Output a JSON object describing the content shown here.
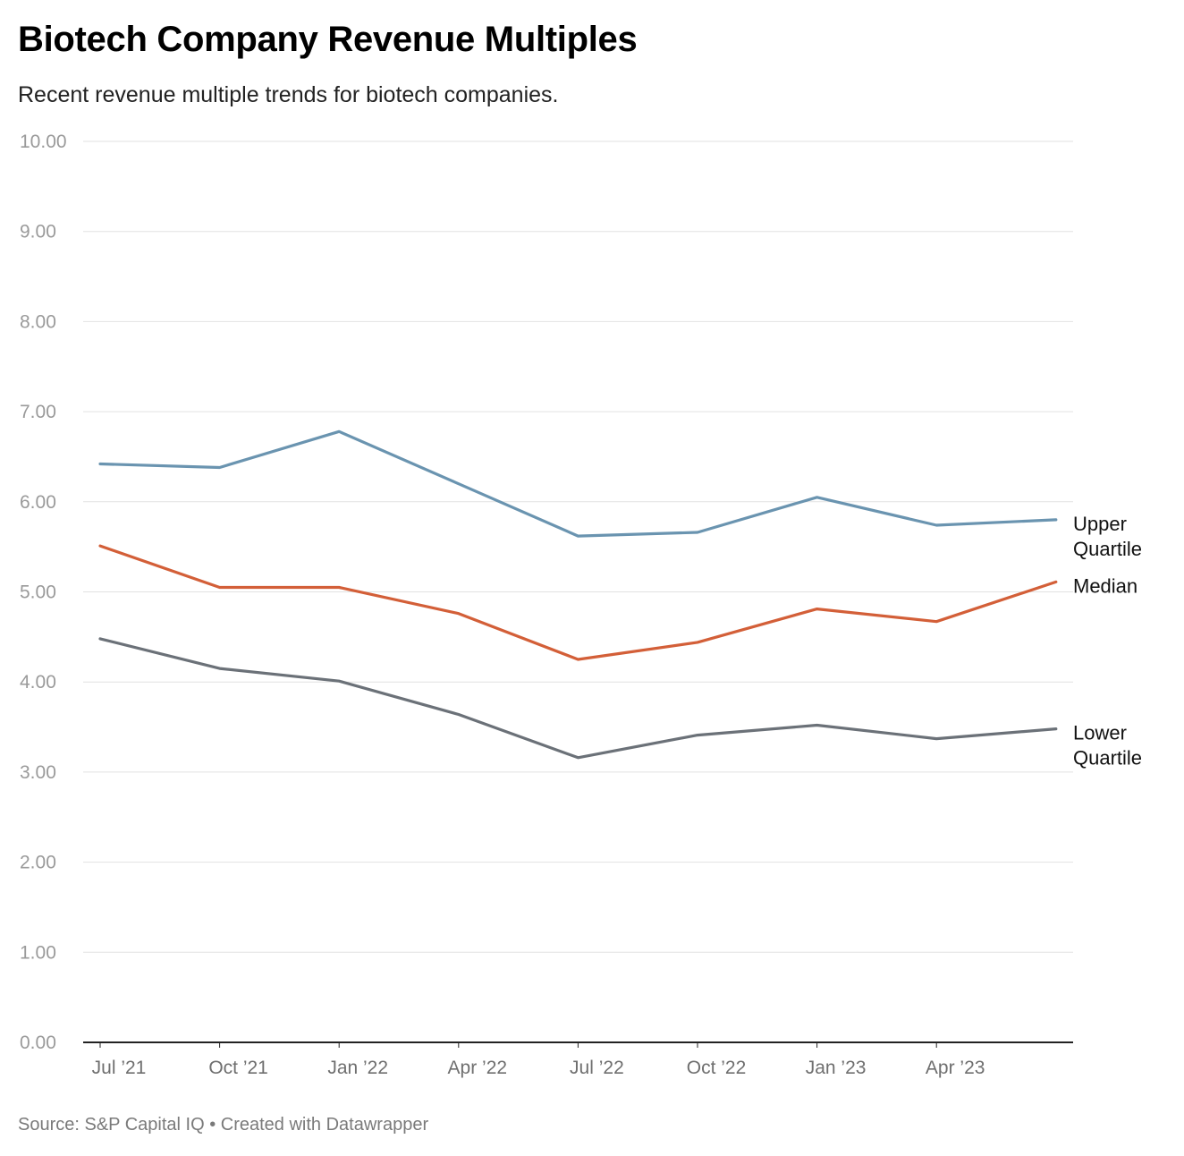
{
  "header": {
    "title": "Biotech Company Revenue Multiples",
    "subtitle": "Recent revenue multiple trends for biotech companies."
  },
  "footer": {
    "source": "Source: S&P Capital IQ",
    "separator": "•",
    "credit": "Created with Datawrapper"
  },
  "chart_data": {
    "type": "line",
    "title": "Biotech Company Revenue Multiples",
    "subtitle": "Recent revenue multiple trends for biotech companies.",
    "xlabel": "",
    "ylabel": "",
    "x": [
      "2021-07",
      "2021-10",
      "2022-01",
      "2022-04",
      "2022-07",
      "2022-10",
      "2023-01",
      "2023-04",
      "2023-07"
    ],
    "x_ticks": [
      "Jul ’21",
      "Oct ’21",
      "Jan ’22",
      "Apr ’22",
      "Jul ’22",
      "Oct ’22",
      "Jan ’23",
      "Apr ’23"
    ],
    "ylim": [
      0,
      10
    ],
    "y_ticks": [
      "0.00",
      "1.00",
      "2.00",
      "3.00",
      "4.00",
      "5.00",
      "6.00",
      "7.00",
      "8.00",
      "9.00",
      "10.00"
    ],
    "grid": true,
    "legend": "direct labels at right end of lines",
    "series": [
      {
        "name": "Upper Quartile",
        "label_lines": [
          "Upper",
          "Quartile"
        ],
        "color": "#6a94b0",
        "values": [
          6.42,
          6.38,
          6.78,
          6.2,
          5.62,
          5.66,
          6.05,
          5.74,
          5.8
        ]
      },
      {
        "name": "Median",
        "label_lines": [
          "Median"
        ],
        "color": "#d35f38",
        "values": [
          5.51,
          5.05,
          5.05,
          4.76,
          4.25,
          4.44,
          4.81,
          4.67,
          5.11
        ]
      },
      {
        "name": "Lower Quartile",
        "label_lines": [
          "Lower",
          "Quartile"
        ],
        "color": "#6b7178",
        "values": [
          4.48,
          4.15,
          4.01,
          3.64,
          3.16,
          3.41,
          3.52,
          3.37,
          3.48
        ]
      }
    ]
  }
}
